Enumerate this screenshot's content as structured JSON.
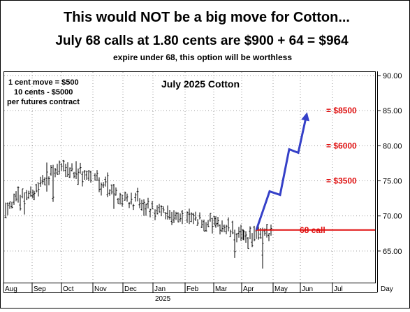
{
  "header": {
    "line1": "This would NOT be a big move for Cotton...",
    "line2": "July 68 calls at 1.80 cents are $900 + 64 = $964",
    "line3": "expire under 68, this option will be worthless",
    "line1_color": "#1a1ae0",
    "line2_color": "#e01010",
    "line3_color": "#e01010"
  },
  "chart_data": {
    "type": "ohlc",
    "title": "July 2025 Cotton",
    "notes": [
      "1 cent move = $500",
      "10 cents - $5000",
      "per futures contract"
    ],
    "x_axis": {
      "labels": [
        "Aug",
        "Sep",
        "Oct",
        "Nov",
        "Dec",
        "Jan",
        "Feb",
        "Mar",
        "Apr",
        "May",
        "Jun",
        "Jul"
      ],
      "year_label": "2025",
      "period_label": "Day"
    },
    "y_axis": {
      "ticks": [
        65,
        70,
        75,
        80,
        85,
        90
      ],
      "tick_labels": [
        "65.00",
        "70.00",
        "75.00",
        "80.00",
        "85.00",
        "90.00"
      ],
      "range": [
        60.5,
        90.5
      ],
      "side": "right"
    },
    "grid": true,
    "price_series": {
      "color": "#000000",
      "months": [
        {
          "month": "Aug",
          "start": 71.5,
          "end": 73.5,
          "high": 74.2,
          "low": 70.2
        },
        {
          "month": "Sep",
          "start": 73.5,
          "end": 77.0,
          "high": 77.6,
          "low": 72.0
        },
        {
          "month": "Oct",
          "start": 77.0,
          "end": 75.5,
          "high": 77.8,
          "low": 74.2
        },
        {
          "month": "Nov",
          "start": 75.5,
          "end": 72.5,
          "high": 76.2,
          "low": 71.0
        },
        {
          "month": "Dec",
          "start": 72.5,
          "end": 70.8,
          "high": 74.0,
          "low": 70.0
        },
        {
          "month": "Jan",
          "start": 70.8,
          "end": 69.8,
          "high": 71.5,
          "low": 69.0
        },
        {
          "month": "Feb",
          "start": 69.8,
          "end": 68.8,
          "high": 70.5,
          "low": 67.8
        },
        {
          "month": "Mar",
          "start": 68.8,
          "end": 67.0,
          "high": 69.8,
          "low": 64.0
        },
        {
          "month": "Apr",
          "start": 67.0,
          "end": 67.5,
          "high": 68.3,
          "low": 62.5
        }
      ]
    },
    "projection": {
      "color": "#3540c8",
      "points": [
        [
          "Apr",
          68.0
        ],
        [
          "Apr-May",
          73.5
        ],
        [
          "May",
          73.0
        ],
        [
          "May-Jun",
          79.5
        ],
        [
          "Jun",
          79.0
        ],
        [
          "Jun",
          84.0
        ]
      ]
    },
    "strike_line": {
      "value": 68.0,
      "label": "68 call",
      "color": "#e01010"
    },
    "level_annotations": [
      {
        "label": "= $8500",
        "value": 85.0
      },
      {
        "label": "= $6000",
        "value": 80.0
      },
      {
        "label": "= $3500",
        "value": 75.0
      }
    ],
    "annotation_color": "#e01010"
  }
}
